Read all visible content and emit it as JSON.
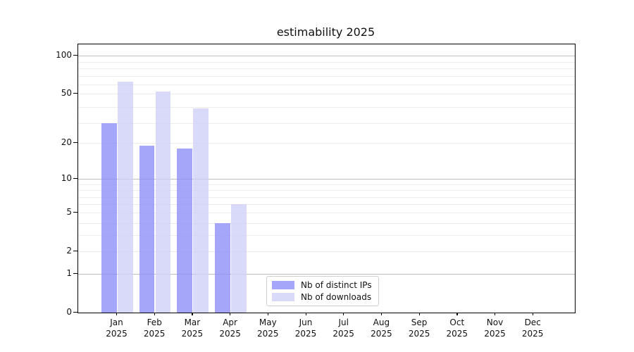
{
  "title": "estimability 2025",
  "chart_data": {
    "type": "bar",
    "title": "estimability 2025",
    "categories": [
      "Jan",
      "Feb",
      "Mar",
      "Apr",
      "May",
      "Jun",
      "Jul",
      "Aug",
      "Sep",
      "Oct",
      "Nov",
      "Dec"
    ],
    "year_label": "2025",
    "series": [
      {
        "name": "Nb of distinct IPs",
        "color": "#8f8ff7",
        "values": [
          29,
          19,
          18,
          4,
          null,
          null,
          null,
          null,
          null,
          null,
          null,
          null
        ]
      },
      {
        "name": "Nb of downloads",
        "color": "#cfcff8",
        "values": [
          62,
          52,
          38,
          6,
          null,
          null,
          null,
          null,
          null,
          null,
          null,
          null
        ]
      }
    ],
    "yticks": [
      0,
      1,
      2,
      5,
      10,
      20,
      50,
      100
    ],
    "y_scale": "log1p",
    "ylim": [
      0,
      123
    ],
    "grid": true,
    "grid_major_values": [
      1,
      10,
      100
    ],
    "grid_minor_values": [
      2,
      3,
      4,
      5,
      6,
      7,
      8,
      9,
      20,
      29,
      39,
      50,
      59,
      69,
      79,
      89
    ],
    "legend_position": "inside-bottom-center",
    "background_color": "#ffffff",
    "axis_color": "#000000"
  }
}
